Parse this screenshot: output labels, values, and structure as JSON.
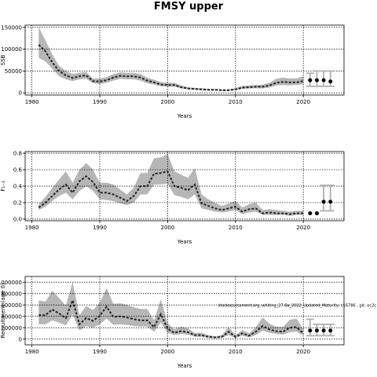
{
  "title": "FMSY upper",
  "chart_data": [
    {
      "type": "line",
      "ylabel": "SSB",
      "xlabel": "Years",
      "xlim": [
        1979,
        2026
      ],
      "ylim": [
        -5000,
        155000
      ],
      "xticks": [
        1980,
        1990,
        2000,
        2010,
        2020
      ],
      "yticks": [
        0,
        50000,
        100000,
        150000
      ],
      "ytick_labels": [
        "0",
        "50000",
        "100000",
        "150000"
      ],
      "grid": true,
      "x": [
        1981,
        1982,
        1983,
        1984,
        1985,
        1986,
        1987,
        1988,
        1989,
        1990,
        1991,
        1992,
        1993,
        1994,
        1995,
        1996,
        1997,
        1998,
        1999,
        2000,
        2001,
        2002,
        2003,
        2004,
        2005,
        2006,
        2007,
        2008,
        2009,
        2010,
        2011,
        2012,
        2013,
        2014,
        2015,
        2016,
        2017,
        2018,
        2019,
        2020
      ],
      "median": [
        110000,
        95000,
        70000,
        50000,
        40000,
        34000,
        38000,
        40000,
        27000,
        26000,
        29000,
        35000,
        39000,
        38000,
        38000,
        35000,
        28000,
        24000,
        19000,
        18000,
        18000,
        13000,
        10000,
        9000,
        8000,
        7000,
        7000,
        6000,
        6000,
        8000,
        12000,
        13000,
        14000,
        14000,
        17000,
        23000,
        25000,
        24000,
        24000,
        27000
      ],
      "lower": [
        80000,
        72000,
        55000,
        38000,
        31000,
        27000,
        31000,
        32000,
        22000,
        20000,
        23000,
        28000,
        32000,
        31000,
        31000,
        28000,
        22000,
        19000,
        15000,
        14000,
        14000,
        10000,
        8000,
        7000,
        6000,
        5500,
        5500,
        4500,
        5000,
        6000,
        9000,
        10000,
        10500,
        10000,
        12000,
        17000,
        18000,
        17000,
        18000,
        20000
      ],
      "upper": [
        150000,
        120000,
        88000,
        62000,
        50000,
        43000,
        46000,
        48000,
        33000,
        33000,
        36000,
        43000,
        47000,
        46000,
        46000,
        43000,
        35000,
        30000,
        25000,
        23000,
        23000,
        17000,
        13000,
        11500,
        10500,
        9000,
        9000,
        8000,
        8000,
        10500,
        16000,
        17000,
        18000,
        18500,
        23000,
        32000,
        35000,
        33000,
        33000,
        38000
      ],
      "forecast": {
        "x": [
          2021,
          2022,
          2023,
          2024
        ],
        "median": [
          29000,
          29000,
          29000,
          26000
        ],
        "lower": [
          15000,
          15000,
          15000,
          15000
        ],
        "upper": [
          45000,
          50000,
          50000,
          50000
        ]
      }
    },
    {
      "type": "line",
      "ylabel": "F₁₋₃",
      "xlabel": "Years",
      "xlim": [
        1979,
        2026
      ],
      "ylim": [
        -0.02,
        0.82
      ],
      "xticks": [
        1980,
        1990,
        2000,
        2010,
        2020
      ],
      "yticks": [
        0.0,
        0.2,
        0.4,
        0.6,
        0.8
      ],
      "ytick_labels": [
        "0.0",
        "0.2",
        "0.4",
        "0.6",
        "0.8"
      ],
      "grid": true,
      "x": [
        1981,
        1982,
        1983,
        1984,
        1985,
        1986,
        1987,
        1988,
        1989,
        1990,
        1991,
        1992,
        1993,
        1994,
        1995,
        1996,
        1997,
        1998,
        1999,
        2000,
        2001,
        2002,
        2003,
        2004,
        2005,
        2006,
        2007,
        2008,
        2009,
        2010,
        2011,
        2012,
        2013,
        2014,
        2015,
        2016,
        2017,
        2018,
        2019,
        2020
      ],
      "median": [
        0.14,
        0.2,
        0.28,
        0.36,
        0.42,
        0.32,
        0.46,
        0.52,
        0.45,
        0.32,
        0.32,
        0.3,
        0.26,
        0.22,
        0.28,
        0.4,
        0.4,
        0.55,
        0.56,
        0.58,
        0.4,
        0.38,
        0.35,
        0.42,
        0.19,
        0.16,
        0.13,
        0.11,
        0.13,
        0.15,
        0.09,
        0.12,
        0.13,
        0.07,
        0.08,
        0.07,
        0.07,
        0.06,
        0.07,
        0.07
      ],
      "lower": [
        0.11,
        0.15,
        0.22,
        0.28,
        0.32,
        0.24,
        0.34,
        0.4,
        0.34,
        0.24,
        0.23,
        0.22,
        0.19,
        0.17,
        0.2,
        0.3,
        0.3,
        0.42,
        0.42,
        0.43,
        0.29,
        0.27,
        0.24,
        0.3,
        0.13,
        0.11,
        0.09,
        0.08,
        0.09,
        0.11,
        0.06,
        0.08,
        0.09,
        0.05,
        0.05,
        0.05,
        0.05,
        0.04,
        0.05,
        0.05
      ],
      "upper": [
        0.18,
        0.27,
        0.38,
        0.48,
        0.58,
        0.44,
        0.6,
        0.68,
        0.6,
        0.44,
        0.44,
        0.42,
        0.36,
        0.3,
        0.38,
        0.56,
        0.56,
        0.74,
        0.75,
        0.79,
        0.58,
        0.54,
        0.5,
        0.62,
        0.3,
        0.24,
        0.2,
        0.16,
        0.19,
        0.22,
        0.14,
        0.18,
        0.2,
        0.11,
        0.12,
        0.11,
        0.1,
        0.09,
        0.1,
        0.1
      ],
      "forecast": {
        "x": [
          2021,
          2022,
          2023,
          2024
        ],
        "median": [
          0.07,
          0.07,
          0.21,
          0.21
        ],
        "lower": [
          0.07,
          0.07,
          0.1,
          0.1
        ],
        "upper": [
          0.07,
          0.07,
          0.41,
          0.41
        ]
      }
    },
    {
      "type": "line",
      "ylabel": "Recruitment (age 0)",
      "xlabel": "Years",
      "xlim": [
        1979,
        2026
      ],
      "ylim": [
        -100000,
        1100000
      ],
      "xticks": [
        1980,
        1990,
        2000,
        2010,
        2020
      ],
      "yticks": [
        0,
        200000,
        400000,
        600000,
        800000,
        1000000
      ],
      "ytick_labels": [
        "0",
        "200000",
        "400000",
        "600000",
        "800000",
        "1000000"
      ],
      "grid": true,
      "annotation": "stockassessment.org, whiting_27.6a_2022_Updated_Maturity, c16786 , git: ec2c",
      "x": [
        1981,
        1982,
        1983,
        1984,
        1985,
        1986,
        1987,
        1988,
        1989,
        1990,
        1991,
        1992,
        1993,
        1994,
        1995,
        1996,
        1997,
        1998,
        1999,
        2000,
        2001,
        2002,
        2003,
        2004,
        2005,
        2006,
        2007,
        2008,
        2009,
        2010,
        2011,
        2012,
        2013,
        2014,
        2015,
        2016,
        2017,
        2018,
        2019,
        2020
      ],
      "median": [
        420000,
        420000,
        520000,
        450000,
        370000,
        680000,
        260000,
        370000,
        320000,
        410000,
        570000,
        390000,
        400000,
        380000,
        350000,
        330000,
        330000,
        210000,
        440000,
        180000,
        110000,
        140000,
        120000,
        70000,
        70000,
        40000,
        30000,
        40000,
        130000,
        40000,
        100000,
        60000,
        130000,
        230000,
        170000,
        140000,
        130000,
        200000,
        210000,
        100000
      ],
      "lower": [
        260000,
        260000,
        330000,
        290000,
        240000,
        430000,
        150000,
        230000,
        200000,
        260000,
        360000,
        250000,
        260000,
        250000,
        230000,
        220000,
        220000,
        130000,
        290000,
        110000,
        70000,
        90000,
        80000,
        40000,
        40000,
        20000,
        15000,
        20000,
        70000,
        20000,
        60000,
        30000,
        70000,
        150000,
        110000,
        90000,
        80000,
        120000,
        130000,
        60000
      ],
      "upper": [
        680000,
        660000,
        850000,
        720000,
        590000,
        1000000,
        420000,
        580000,
        510000,
        640000,
        900000,
        620000,
        630000,
        600000,
        560000,
        530000,
        530000,
        330000,
        700000,
        280000,
        170000,
        220000,
        190000,
        110000,
        110000,
        70000,
        50000,
        70000,
        210000,
        70000,
        160000,
        100000,
        210000,
        380000,
        270000,
        220000,
        210000,
        340000,
        360000,
        170000
      ],
      "forecast": {
        "x": [
          2021,
          2022,
          2023,
          2024
        ],
        "median": [
          150000,
          150000,
          150000,
          150000
        ],
        "lower": [
          60000,
          60000,
          60000,
          60000
        ],
        "upper": [
          350000,
          260000,
          260000,
          260000
        ]
      }
    }
  ]
}
